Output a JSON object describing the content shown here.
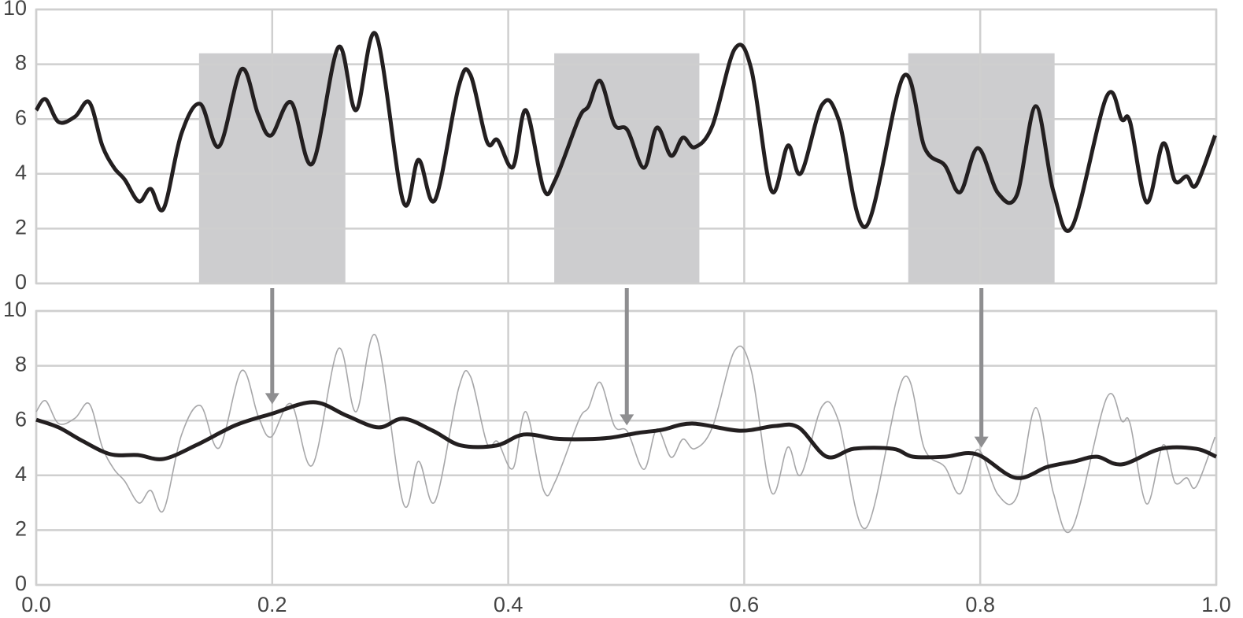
{
  "chart_data": [
    {
      "type": "line",
      "ylim": [
        0,
        10
      ],
      "yticks": [
        0,
        2,
        4,
        6,
        8,
        10
      ],
      "xlim": [
        0,
        1
      ],
      "xticks": [
        0,
        0.2,
        0.4,
        0.6,
        0.8,
        1
      ],
      "show_xtick_labels": false,
      "grid": true,
      "highlights": {
        "color": "#cdcdcf",
        "height": 8.4,
        "ranges": [
          [
            0.138,
            0.262
          ],
          [
            0.439,
            0.562
          ],
          [
            0.739,
            0.863
          ]
        ],
        "arrow_color": "#8e8e90"
      },
      "series": [
        {
          "color": "#231f20",
          "width": 5,
          "x": [
            0,
            0.008,
            0.019,
            0.033,
            0.045,
            0.056,
            0.066,
            0.075,
            0.087,
            0.097,
            0.108,
            0.123,
            0.139,
            0.155,
            0.174,
            0.188,
            0.199,
            0.216,
            0.234,
            0.256,
            0.271,
            0.288,
            0.311,
            0.324,
            0.338,
            0.358,
            0.368,
            0.382,
            0.391,
            0.404,
            0.415,
            0.43,
            0.44,
            0.46,
            0.468,
            0.478,
            0.49,
            0.501,
            0.515,
            0.526,
            0.538,
            0.548,
            0.558,
            0.573,
            0.592,
            0.606,
            0.623,
            0.637,
            0.648,
            0.666,
            0.68,
            0.703,
            0.735,
            0.753,
            0.77,
            0.783,
            0.798,
            0.815,
            0.831,
            0.847,
            0.862,
            0.878,
            0.907,
            0.92,
            0.927,
            0.941,
            0.955,
            0.965,
            0.975,
            0.983,
            0.999
          ],
          "values": [
            6.32,
            6.72,
            5.89,
            6.09,
            6.61,
            5.03,
            4.22,
            3.79,
            2.99,
            3.45,
            2.73,
            5.46,
            6.55,
            5.0,
            7.82,
            6.18,
            5.4,
            6.61,
            4.37,
            8.62,
            6.32,
            9.08,
            2.99,
            4.51,
            3.05,
            7.18,
            7.61,
            5.17,
            5.23,
            4.25,
            6.32,
            3.45,
            3.79,
            6.03,
            6.47,
            7.39,
            5.8,
            5.6,
            4.22,
            5.69,
            4.66,
            5.32,
            4.97,
            5.75,
            8.56,
            7.82,
            3.39,
            5.03,
            4.02,
            6.52,
            5.98,
            2.07,
            7.56,
            4.94,
            4.31,
            3.33,
            4.94,
            3.3,
            3.22,
            6.47,
            3.36,
            2.07,
            6.81,
            5.98,
            5.89,
            2.96,
            5.11,
            3.74,
            3.91,
            3.59,
            5.4
          ]
        }
      ]
    },
    {
      "type": "line",
      "ylim": [
        0,
        10
      ],
      "yticks": [
        0,
        2,
        4,
        6,
        8,
        10
      ],
      "xlim": [
        0,
        1
      ],
      "xticks": [
        {
          "value": 0,
          "label": "0.0"
        },
        0.2,
        0.4,
        0.6,
        0.8,
        {
          "value": 1,
          "label": "1.0"
        }
      ],
      "show_xtick_labels": true,
      "grid": true,
      "series": [
        {
          "color": "#a7a7a9",
          "width": 1.6,
          "x": [
            0,
            0.008,
            0.019,
            0.033,
            0.045,
            0.056,
            0.066,
            0.075,
            0.087,
            0.097,
            0.108,
            0.123,
            0.139,
            0.155,
            0.174,
            0.188,
            0.199,
            0.216,
            0.234,
            0.256,
            0.271,
            0.288,
            0.311,
            0.324,
            0.338,
            0.358,
            0.368,
            0.382,
            0.391,
            0.404,
            0.415,
            0.43,
            0.44,
            0.46,
            0.468,
            0.478,
            0.49,
            0.501,
            0.515,
            0.526,
            0.538,
            0.548,
            0.558,
            0.573,
            0.592,
            0.606,
            0.623,
            0.637,
            0.648,
            0.666,
            0.68,
            0.703,
            0.735,
            0.753,
            0.77,
            0.783,
            0.798,
            0.815,
            0.831,
            0.847,
            0.862,
            0.878,
            0.907,
            0.92,
            0.927,
            0.941,
            0.955,
            0.965,
            0.975,
            0.983,
            0.999
          ],
          "values": [
            6.32,
            6.72,
            5.89,
            6.09,
            6.61,
            5.03,
            4.22,
            3.79,
            2.99,
            3.45,
            2.73,
            5.46,
            6.55,
            5.0,
            7.82,
            6.18,
            5.4,
            6.61,
            4.37,
            8.62,
            6.32,
            9.08,
            2.99,
            4.51,
            3.05,
            7.18,
            7.61,
            5.17,
            5.23,
            4.25,
            6.32,
            3.45,
            3.79,
            6.03,
            6.47,
            7.39,
            5.8,
            5.6,
            4.22,
            5.69,
            4.66,
            5.32,
            4.97,
            5.75,
            8.56,
            7.82,
            3.39,
            5.03,
            4.02,
            6.52,
            5.98,
            2.07,
            7.56,
            4.94,
            4.31,
            3.33,
            4.94,
            3.3,
            3.22,
            6.47,
            3.36,
            2.07,
            6.81,
            5.98,
            5.89,
            2.96,
            5.11,
            3.74,
            3.91,
            3.59,
            5.4
          ]
        },
        {
          "color": "#231f20",
          "width": 5,
          "x": [
            0,
            0.019,
            0.039,
            0.063,
            0.086,
            0.108,
            0.136,
            0.169,
            0.199,
            0.235,
            0.263,
            0.29,
            0.311,
            0.336,
            0.36,
            0.39,
            0.413,
            0.44,
            0.463,
            0.486,
            0.51,
            0.53,
            0.556,
            0.596,
            0.626,
            0.646,
            0.67,
            0.693,
            0.726,
            0.743,
            0.77,
            0.797,
            0.83,
            0.857,
            0.88,
            0.899,
            0.92,
            0.953,
            0.983,
            1.0
          ],
          "values": [
            6.03,
            5.75,
            5.26,
            4.77,
            4.74,
            4.6,
            5.11,
            5.83,
            6.24,
            6.67,
            6.18,
            5.75,
            6.07,
            5.63,
            5.09,
            5.09,
            5.49,
            5.34,
            5.32,
            5.37,
            5.55,
            5.66,
            5.89,
            5.63,
            5.8,
            5.75,
            4.68,
            4.97,
            4.97,
            4.68,
            4.68,
            4.77,
            3.91,
            4.31,
            4.51,
            4.68,
            4.4,
            4.97,
            4.97,
            4.68
          ]
        }
      ]
    }
  ]
}
